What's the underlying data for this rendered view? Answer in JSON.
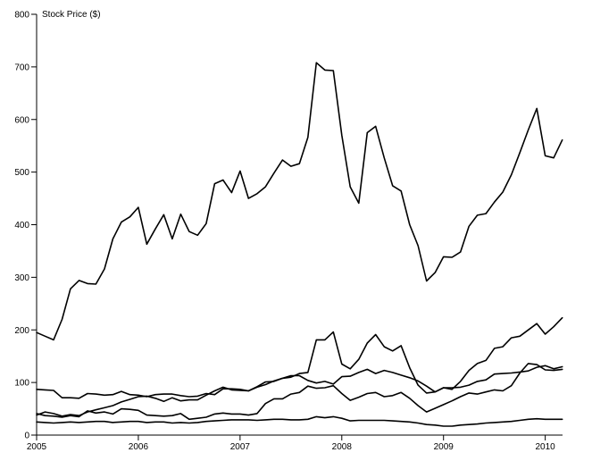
{
  "chart_data": {
    "type": "line",
    "title": "",
    "xlabel": "",
    "ylabel": "Stock Price ($)",
    "xlim": [
      2005.0,
      2010.17
    ],
    "ylim": [
      0,
      800
    ],
    "x_ticks": [
      "2005",
      "2006",
      "2007",
      "2008",
      "2009",
      "2010"
    ],
    "y_ticks": [
      "0",
      "100",
      "200",
      "300",
      "400",
      "500",
      "600",
      "700",
      "800"
    ],
    "grid": false,
    "legend": "none",
    "x": [
      2005.0,
      2005.083,
      2005.167,
      2005.25,
      2005.333,
      2005.417,
      2005.5,
      2005.583,
      2005.667,
      2005.75,
      2005.833,
      2005.917,
      2006.0,
      2006.083,
      2006.167,
      2006.25,
      2006.333,
      2006.417,
      2006.5,
      2006.583,
      2006.667,
      2006.75,
      2006.833,
      2006.917,
      2007.0,
      2007.083,
      2007.167,
      2007.25,
      2007.333,
      2007.417,
      2007.5,
      2007.583,
      2007.667,
      2007.75,
      2007.833,
      2007.917,
      2008.0,
      2008.083,
      2008.167,
      2008.25,
      2008.333,
      2008.417,
      2008.5,
      2008.583,
      2008.667,
      2008.75,
      2008.833,
      2008.917,
      2009.0,
      2009.083,
      2009.167,
      2009.25,
      2009.333,
      2009.417,
      2009.5,
      2009.583,
      2009.667,
      2009.75,
      2009.833,
      2009.917,
      2010.0,
      2010.083,
      2010.167
    ],
    "series": [
      {
        "values": [
          195,
          188,
          181,
          220,
          278,
          294,
          288,
          287,
          316,
          373,
          405,
          415,
          433,
          363,
          392,
          419,
          373,
          420,
          387,
          380,
          402,
          478,
          485,
          461,
          502,
          450,
          459,
          472,
          498,
          523,
          511,
          516,
          566,
          708,
          694,
          693,
          570,
          472,
          441,
          575,
          587,
          527,
          474,
          464,
          400,
          360,
          293,
          309,
          339,
          338,
          348,
          397,
          418,
          421,
          443,
          462,
          495,
          537,
          580,
          621,
          531,
          527,
          561
        ]
      },
      {
        "values": [
          38,
          44,
          41,
          36,
          39,
          37,
          44,
          48,
          52,
          56,
          63,
          68,
          73,
          74,
          70,
          64,
          71,
          65,
          67,
          67,
          76,
          84,
          91,
          86,
          85,
          84,
          92,
          101,
          102,
          108,
          110,
          117,
          119,
          181,
          181,
          196,
          135,
          126,
          144,
          175,
          191,
          168,
          160,
          170,
          128,
          95,
          80,
          82,
          90,
          87,
          102,
          123,
          136,
          142,
          165,
          168,
          185,
          188,
          200,
          212,
          192,
          206,
          223
        ]
      },
      {
        "values": [
          87,
          86,
          85,
          71,
          71,
          70,
          79,
          78,
          76,
          77,
          83,
          77,
          76,
          73,
          77,
          78,
          78,
          75,
          73,
          74,
          79,
          77,
          88,
          88,
          87,
          84,
          91,
          96,
          103,
          108,
          113,
          113,
          104,
          99,
          102,
          97,
          111,
          112,
          119,
          125,
          117,
          123,
          119,
          114,
          109,
          103,
          93,
          82,
          90,
          90,
          91,
          95,
          102,
          105,
          116,
          117,
          118,
          120,
          122,
          129,
          132,
          126,
          130
        ]
      },
      {
        "values": [
          41,
          37,
          36,
          34,
          37,
          35,
          46,
          42,
          44,
          40,
          50,
          49,
          47,
          38,
          37,
          36,
          37,
          41,
          30,
          32,
          34,
          40,
          42,
          40,
          40,
          38,
          41,
          60,
          69,
          69,
          78,
          81,
          93,
          89,
          90,
          94,
          79,
          66,
          72,
          79,
          81,
          73,
          75,
          81,
          70,
          56,
          44,
          51,
          58,
          65,
          73,
          80,
          78,
          82,
          86,
          84,
          94,
          118,
          136,
          134,
          124,
          123,
          125
        ]
      },
      {
        "values": [
          25,
          24,
          23,
          24,
          25,
          24,
          25,
          26,
          26,
          24,
          25,
          26,
          26,
          24,
          25,
          25,
          23,
          24,
          23,
          24,
          26,
          27,
          28,
          29,
          29,
          29,
          28,
          29,
          30,
          30,
          29,
          29,
          30,
          35,
          33,
          35,
          32,
          27,
          28,
          28,
          28,
          28,
          27,
          26,
          25,
          23,
          20,
          19,
          17,
          17,
          19,
          20,
          21,
          23,
          24,
          25,
          26,
          28,
          30,
          31,
          30,
          30,
          30
        ]
      }
    ]
  }
}
